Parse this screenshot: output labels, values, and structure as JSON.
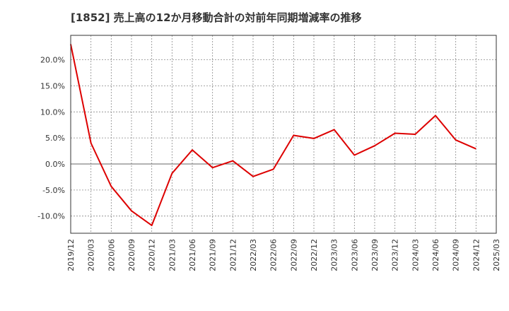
{
  "chart_data": {
    "type": "line",
    "title": "[1852]  売上高の12か月移動合計の対前年同期増減率の推移",
    "xlabel": "",
    "ylabel": "",
    "ylim": [
      -13.3,
      24.7
    ],
    "yticks": [
      -10,
      -5,
      0,
      5,
      10,
      15,
      20
    ],
    "ytick_labels": [
      "-10.0%",
      "-5.0%",
      "0.0%",
      "5.0%",
      "10.0%",
      "15.0%",
      "20.0%"
    ],
    "x_ticks": [
      "2019/12",
      "2020/03",
      "2020/06",
      "2020/09",
      "2020/12",
      "2021/03",
      "2021/06",
      "2021/09",
      "2021/12",
      "2022/03",
      "2022/06",
      "2022/09",
      "2022/12",
      "2023/03",
      "2023/06",
      "2023/09",
      "2023/12",
      "2024/03",
      "2024/06",
      "2024/09",
      "2024/12",
      "2025/03"
    ],
    "grid": true,
    "series": [
      {
        "name": "売上高の12か月移動合計の対前年同期増減率",
        "color": "#dd0000",
        "x": [
          "2019/12",
          "2020/03",
          "2020/06",
          "2020/09",
          "2020/12",
          "2021/03",
          "2021/06",
          "2021/09",
          "2021/12",
          "2022/03",
          "2022/06",
          "2022/09",
          "2022/12",
          "2023/03",
          "2023/06",
          "2023/09",
          "2023/12",
          "2024/03",
          "2024/06",
          "2024/09",
          "2024/12"
        ],
        "values": [
          23.0,
          4.0,
          -4.3,
          -9.0,
          -11.8,
          -1.8,
          2.7,
          -0.7,
          0.6,
          -2.4,
          -1.0,
          5.5,
          4.9,
          6.6,
          1.7,
          3.5,
          5.9,
          5.7,
          9.3,
          4.6,
          2.9
        ]
      }
    ]
  }
}
